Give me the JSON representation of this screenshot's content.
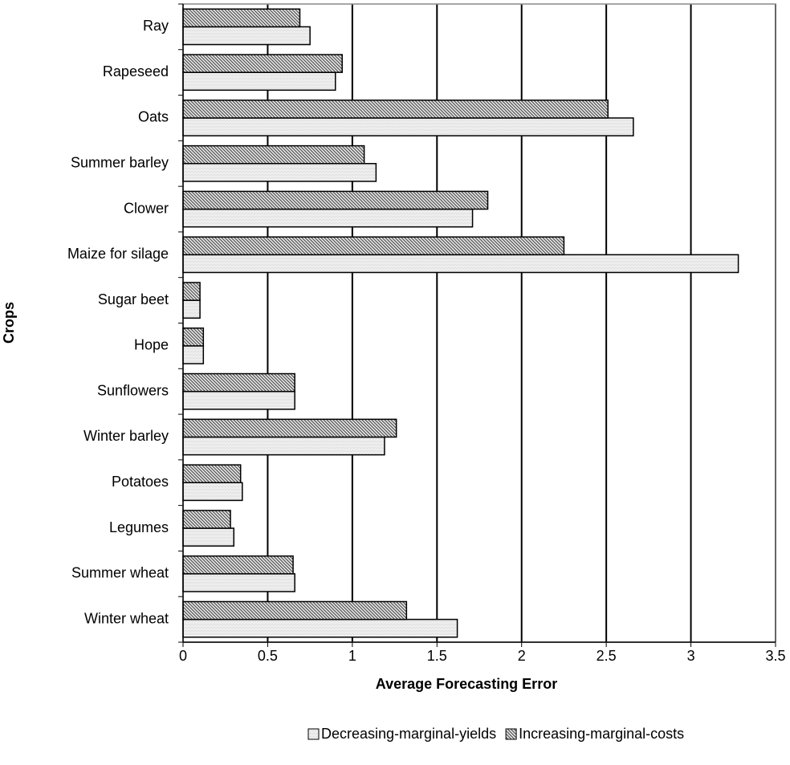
{
  "chart_data": {
    "type": "hbar",
    "xlabel": "Average Forecasting Error",
    "ylabel": "Crops",
    "categories": [
      "Ray",
      "Rapeseed",
      "Oats",
      "Summer barley",
      "Clower",
      "Maize for silage",
      "Sugar beet",
      "Hope",
      "Sunflowers",
      "Winter barley",
      "Potatoes",
      "Legumes",
      "Summer wheat",
      "Winter wheat"
    ],
    "series": [
      {
        "name": "Decreasing-marginal-yields",
        "color": "#eeeeee",
        "values": [
          0.75,
          0.9,
          2.66,
          1.14,
          1.71,
          3.28,
          0.1,
          0.12,
          0.66,
          1.19,
          0.35,
          0.3,
          0.66,
          1.62
        ]
      },
      {
        "name": "Increasing-marginal-costs",
        "color": "#666666",
        "values": [
          0.69,
          0.94,
          2.51,
          1.07,
          1.8,
          2.25,
          0.1,
          0.12,
          0.66,
          1.26,
          0.34,
          0.28,
          0.65,
          1.32
        ]
      }
    ],
    "xlim": [
      0,
      3.5
    ],
    "xticks": [
      0,
      0.5,
      1,
      1.5,
      2,
      2.5,
      3,
      3.5
    ],
    "grid": true,
    "legend": "bottom"
  }
}
